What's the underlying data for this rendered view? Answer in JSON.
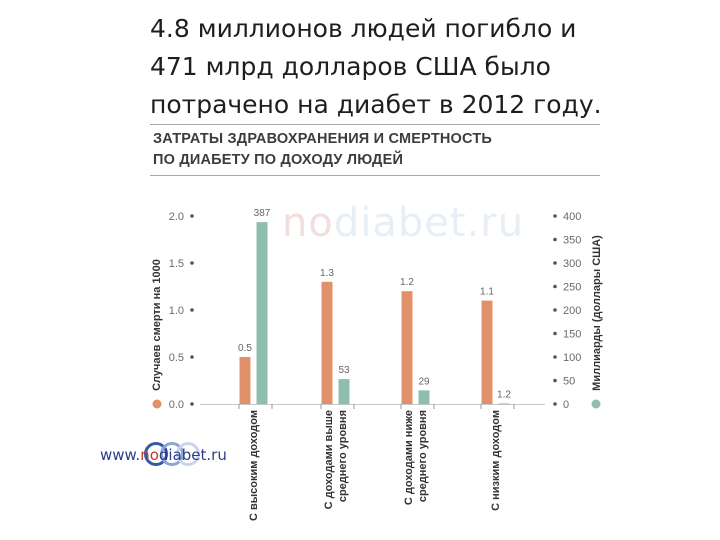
{
  "slide": {
    "title_lines": [
      "4.8 миллионов людей погибло и",
      " 471 млрд долларов США было",
      "потрачено на диабет в 2012 году."
    ],
    "chart_heading_lines": [
      "ЗАТРАТЫ ЗДРАВОХРАНЕНИЯ И СМЕРТНОСТЬ",
      "ПО ДИАБЕТУ ПО ДОХОДУ ЛЮДЕЙ"
    ],
    "watermark": {
      "prefix": "no",
      "rest": "diabet.ru"
    },
    "footer": {
      "prefix": "www.",
      "no": "no",
      "rest": "diabet.ru"
    }
  },
  "chart_data": {
    "type": "bar",
    "ylabel_left": "Случаев смерти на 1000",
    "ylabel_right": "Миллиарды (доллары США)",
    "left_axis": {
      "min": 0,
      "max": 2.0,
      "ticks": [
        "0.0",
        "0.5",
        "1.0",
        "1.5",
        "2.0"
      ]
    },
    "right_axis": {
      "min": 0,
      "max": 400,
      "ticks": [
        "0",
        "50",
        "100",
        "150",
        "200",
        "250",
        "300",
        "350",
        "400"
      ]
    },
    "categories": [
      [
        "С высоким доходом"
      ],
      [
        "С доходами выше",
        "среднего уровня"
      ],
      [
        "С доходами ниже",
        "среднего уровня"
      ],
      [
        "С низким доходом"
      ]
    ],
    "series": [
      {
        "name": "Случаев смерти на 1000",
        "axis": "left",
        "color": "#e0916a",
        "values": [
          0.5,
          1.3,
          1.2,
          1.1
        ],
        "labels": [
          "0.5",
          "1.3",
          "1.2",
          "1.1"
        ]
      },
      {
        "name": "Миллиарды (доллары США)",
        "axis": "right",
        "color": "#8ebfad",
        "values": [
          387,
          53,
          29,
          1.2
        ],
        "labels": [
          "387",
          "53",
          "29",
          "1.2"
        ]
      }
    ],
    "grid": false
  },
  "colors": {
    "orange": "#e0916a",
    "green": "#8ebfad",
    "axis_text": "#6a6a6a",
    "footer_blue": "#2a3d8a"
  }
}
